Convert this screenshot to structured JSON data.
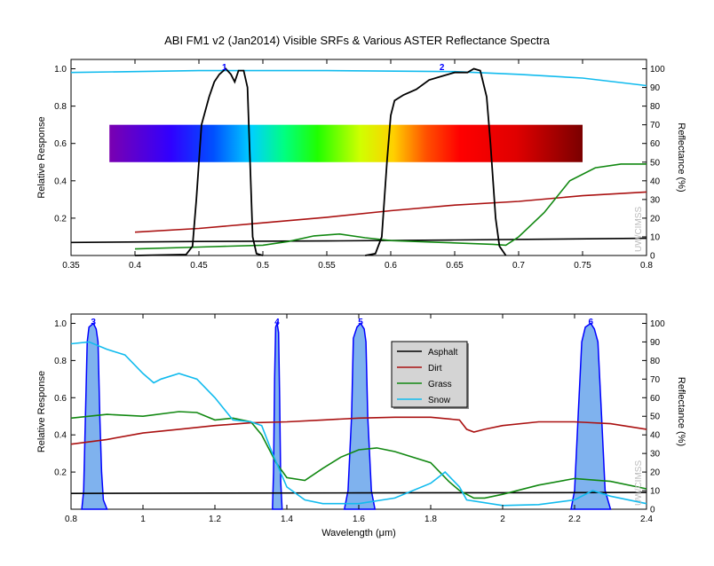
{
  "title": "ABI FM1 v2 (Jan2014) Visible SRFs & Various ASTER Reflectance Spectra",
  "watermark": "UW/CIMSS",
  "chart_data": [
    {
      "type": "line",
      "panel": "top",
      "xlim": [
        0.35,
        0.8
      ],
      "xticks": [
        "0.35",
        "0.4",
        "0.45",
        "0.5",
        "0.55",
        "0.6",
        "0.65",
        "0.7",
        "0.75",
        "0.8"
      ],
      "ylabel": "Relative Response",
      "ylim": [
        0,
        1.05
      ],
      "yticks": [
        "0.2",
        "0.4",
        "0.6",
        "0.8",
        "1.0"
      ],
      "y2label": "Reflectance (%)",
      "y2lim": [
        0,
        105
      ],
      "y2ticks": [
        "0",
        "10",
        "20",
        "30",
        "40",
        "50",
        "60",
        "70",
        "80",
        "90",
        "100"
      ],
      "spectrum_band": {
        "x_range": [
          0.38,
          0.75
        ],
        "y_range": [
          0.5,
          0.7
        ]
      },
      "bands": [
        {
          "label": "1",
          "color": "#0000ff",
          "peak_x": 0.47,
          "points": [
            [
              0.4,
              0
            ],
            [
              0.44,
              0.005
            ],
            [
              0.445,
              0.05
            ],
            [
              0.448,
              0.3
            ],
            [
              0.452,
              0.7
            ],
            [
              0.458,
              0.85
            ],
            [
              0.462,
              0.93
            ],
            [
              0.466,
              0.97
            ],
            [
              0.471,
              1.0
            ],
            [
              0.475,
              0.97
            ],
            [
              0.478,
              0.93
            ],
            [
              0.481,
              0.99
            ],
            [
              0.485,
              0.99
            ],
            [
              0.488,
              0.9
            ],
            [
              0.49,
              0.5
            ],
            [
              0.492,
              0.1
            ],
            [
              0.495,
              0.01
            ],
            [
              0.5,
              0
            ]
          ]
        },
        {
          "label": "2",
          "color": "#0000ff",
          "peak_x": 0.64,
          "points": [
            [
              0.58,
              0
            ],
            [
              0.588,
              0.01
            ],
            [
              0.593,
              0.1
            ],
            [
              0.597,
              0.5
            ],
            [
              0.6,
              0.75
            ],
            [
              0.603,
              0.83
            ],
            [
              0.61,
              0.86
            ],
            [
              0.62,
              0.89
            ],
            [
              0.63,
              0.94
            ],
            [
              0.64,
              0.96
            ],
            [
              0.65,
              0.98
            ],
            [
              0.66,
              0.98
            ],
            [
              0.665,
              1.0
            ],
            [
              0.67,
              0.99
            ],
            [
              0.675,
              0.85
            ],
            [
              0.678,
              0.6
            ],
            [
              0.682,
              0.2
            ],
            [
              0.685,
              0.05
            ],
            [
              0.69,
              0
            ]
          ]
        }
      ],
      "series": [
        {
          "name": "Asphalt",
          "color": "#000000",
          "points": [
            [
              0.35,
              7
            ],
            [
              0.45,
              7.5
            ],
            [
              0.55,
              7.8
            ],
            [
              0.65,
              8.3
            ],
            [
              0.8,
              9.2
            ]
          ]
        },
        {
          "name": "Dirt",
          "color": "#aa1111",
          "points": [
            [
              0.4,
              12.5
            ],
            [
              0.45,
              14.5
            ],
            [
              0.5,
              17.5
            ],
            [
              0.55,
              20.5
            ],
            [
              0.6,
              24
            ],
            [
              0.65,
              27
            ],
            [
              0.7,
              29
            ],
            [
              0.75,
              32
            ],
            [
              0.8,
              34
            ]
          ]
        },
        {
          "name": "Grass",
          "color": "#118811",
          "points": [
            [
              0.4,
              3.5
            ],
            [
              0.45,
              4.5
            ],
            [
              0.5,
              5.5
            ],
            [
              0.52,
              7.5
            ],
            [
              0.54,
              10.5
            ],
            [
              0.56,
              11.5
            ],
            [
              0.58,
              9.5
            ],
            [
              0.6,
              8
            ],
            [
              0.64,
              7
            ],
            [
              0.68,
              6
            ],
            [
              0.69,
              5.5
            ],
            [
              0.7,
              10
            ],
            [
              0.72,
              23
            ],
            [
              0.74,
              40
            ],
            [
              0.76,
              47
            ],
            [
              0.78,
              49
            ],
            [
              0.8,
              49
            ]
          ]
        },
        {
          "name": "Snow",
          "color": "#11bbee",
          "points": [
            [
              0.35,
              98
            ],
            [
              0.45,
              99
            ],
            [
              0.55,
              99
            ],
            [
              0.65,
              98.5
            ],
            [
              0.7,
              97
            ],
            [
              0.75,
              95
            ],
            [
              0.8,
              91
            ]
          ]
        }
      ]
    },
    {
      "type": "line",
      "panel": "bottom",
      "xlabel": "Wavelength (μm)",
      "xlim": [
        0.8,
        2.4
      ],
      "xticks": [
        "0.8",
        "1",
        "1.2",
        "1.4",
        "1.6",
        "1.8",
        "2",
        "2.2",
        "2.4"
      ],
      "ylabel": "Relative Response",
      "ylim": [
        0,
        1.05
      ],
      "yticks": [
        "0.2",
        "0.4",
        "0.6",
        "0.8",
        "1.0"
      ],
      "y2label": "Reflectance (%)",
      "y2lim": [
        0,
        105
      ],
      "y2ticks": [
        "0",
        "10",
        "20",
        "30",
        "40",
        "50",
        "60",
        "70",
        "80",
        "90",
        "100"
      ],
      "legend_position": "center-right",
      "bands": [
        {
          "label": "3",
          "color": "#0000ff",
          "fill": "#7fb2ee",
          "points": [
            [
              0.83,
              0
            ],
            [
              0.835,
              0.1
            ],
            [
              0.84,
              0.5
            ],
            [
              0.845,
              0.9
            ],
            [
              0.85,
              0.98
            ],
            [
              0.862,
              1.0
            ],
            [
              0.87,
              0.97
            ],
            [
              0.875,
              0.9
            ],
            [
              0.88,
              0.5
            ],
            [
              0.885,
              0.2
            ],
            [
              0.89,
              0.05
            ],
            [
              0.9,
              0
            ]
          ]
        },
        {
          "label": "4",
          "color": "#0000ff",
          "fill": "#7fb2ee",
          "points": [
            [
              1.36,
              0
            ],
            [
              1.363,
              0.2
            ],
            [
              1.366,
              0.7
            ],
            [
              1.369,
              0.98
            ],
            [
              1.373,
              1.0
            ],
            [
              1.377,
              0.95
            ],
            [
              1.38,
              0.6
            ],
            [
              1.383,
              0.15
            ],
            [
              1.387,
              0
            ]
          ]
        },
        {
          "label": "5",
          "color": "#0000ff",
          "fill": "#7fb2ee",
          "points": [
            [
              1.56,
              0
            ],
            [
              1.57,
              0.1
            ],
            [
              1.58,
              0.5
            ],
            [
              1.585,
              0.92
            ],
            [
              1.595,
              0.98
            ],
            [
              1.605,
              1.0
            ],
            [
              1.615,
              0.97
            ],
            [
              1.62,
              0.9
            ],
            [
              1.625,
              0.5
            ],
            [
              1.635,
              0.1
            ],
            [
              1.645,
              0
            ]
          ]
        },
        {
          "label": "6",
          "color": "#0000ff",
          "fill": "#7fb2ee",
          "points": [
            [
              2.19,
              0
            ],
            [
              2.2,
              0.1
            ],
            [
              2.21,
              0.5
            ],
            [
              2.22,
              0.9
            ],
            [
              2.23,
              0.98
            ],
            [
              2.245,
              1.0
            ],
            [
              2.255,
              0.97
            ],
            [
              2.265,
              0.9
            ],
            [
              2.275,
              0.5
            ],
            [
              2.285,
              0.1
            ],
            [
              2.3,
              0
            ]
          ]
        }
      ],
      "series": [
        {
          "name": "Asphalt",
          "color": "#000000",
          "points": [
            [
              0.8,
              8.5
            ],
            [
              1.2,
              8.7
            ],
            [
              1.6,
              8.8
            ],
            [
              2.0,
              8.9
            ],
            [
              2.4,
              9
            ]
          ]
        },
        {
          "name": "Dirt",
          "color": "#aa1111",
          "points": [
            [
              0.8,
              35
            ],
            [
              0.9,
              37.5
            ],
            [
              1.0,
              41
            ],
            [
              1.1,
              43
            ],
            [
              1.2,
              45
            ],
            [
              1.3,
              46.5
            ],
            [
              1.4,
              47
            ],
            [
              1.5,
              48
            ],
            [
              1.6,
              49
            ],
            [
              1.7,
              49.5
            ],
            [
              1.8,
              49.5
            ],
            [
              1.88,
              48
            ],
            [
              1.9,
              43
            ],
            [
              1.92,
              41.5
            ],
            [
              1.95,
              43
            ],
            [
              2.0,
              45
            ],
            [
              2.1,
              47
            ],
            [
              2.2,
              47
            ],
            [
              2.3,
              46
            ],
            [
              2.4,
              43
            ]
          ]
        },
        {
          "name": "Grass",
          "color": "#118811",
          "points": [
            [
              0.8,
              49
            ],
            [
              0.9,
              51
            ],
            [
              1.0,
              50
            ],
            [
              1.1,
              52.5
            ],
            [
              1.15,
              52
            ],
            [
              1.2,
              48
            ],
            [
              1.25,
              49
            ],
            [
              1.3,
              47
            ],
            [
              1.33,
              40
            ],
            [
              1.37,
              25
            ],
            [
              1.4,
              17
            ],
            [
              1.45,
              15.5
            ],
            [
              1.5,
              22
            ],
            [
              1.55,
              28
            ],
            [
              1.6,
              32
            ],
            [
              1.65,
              33
            ],
            [
              1.7,
              31
            ],
            [
              1.8,
              25
            ],
            [
              1.85,
              15
            ],
            [
              1.88,
              10
            ],
            [
              1.92,
              6
            ],
            [
              1.95,
              6
            ],
            [
              2.0,
              8
            ],
            [
              2.1,
              13
            ],
            [
              2.2,
              16.5
            ],
            [
              2.3,
              15
            ],
            [
              2.4,
              11
            ]
          ]
        },
        {
          "name": "Snow",
          "color": "#11bbee",
          "points": [
            [
              0.8,
              89
            ],
            [
              0.85,
              90
            ],
            [
              0.9,
              86
            ],
            [
              0.95,
              83
            ],
            [
              1.0,
              73
            ],
            [
              1.03,
              68
            ],
            [
              1.05,
              70
            ],
            [
              1.1,
              73
            ],
            [
              1.15,
              70
            ],
            [
              1.2,
              60
            ],
            [
              1.25,
              48
            ],
            [
              1.3,
              47
            ],
            [
              1.33,
              45
            ],
            [
              1.36,
              30
            ],
            [
              1.4,
              12
            ],
            [
              1.45,
              5
            ],
            [
              1.5,
              3
            ],
            [
              1.6,
              3
            ],
            [
              1.7,
              6
            ],
            [
              1.8,
              14
            ],
            [
              1.84,
              20
            ],
            [
              1.88,
              12
            ],
            [
              1.9,
              5
            ],
            [
              2.0,
              2
            ],
            [
              2.1,
              2.5
            ],
            [
              2.2,
              5
            ],
            [
              2.25,
              10
            ],
            [
              2.3,
              7
            ],
            [
              2.4,
              3
            ]
          ]
        }
      ]
    }
  ]
}
